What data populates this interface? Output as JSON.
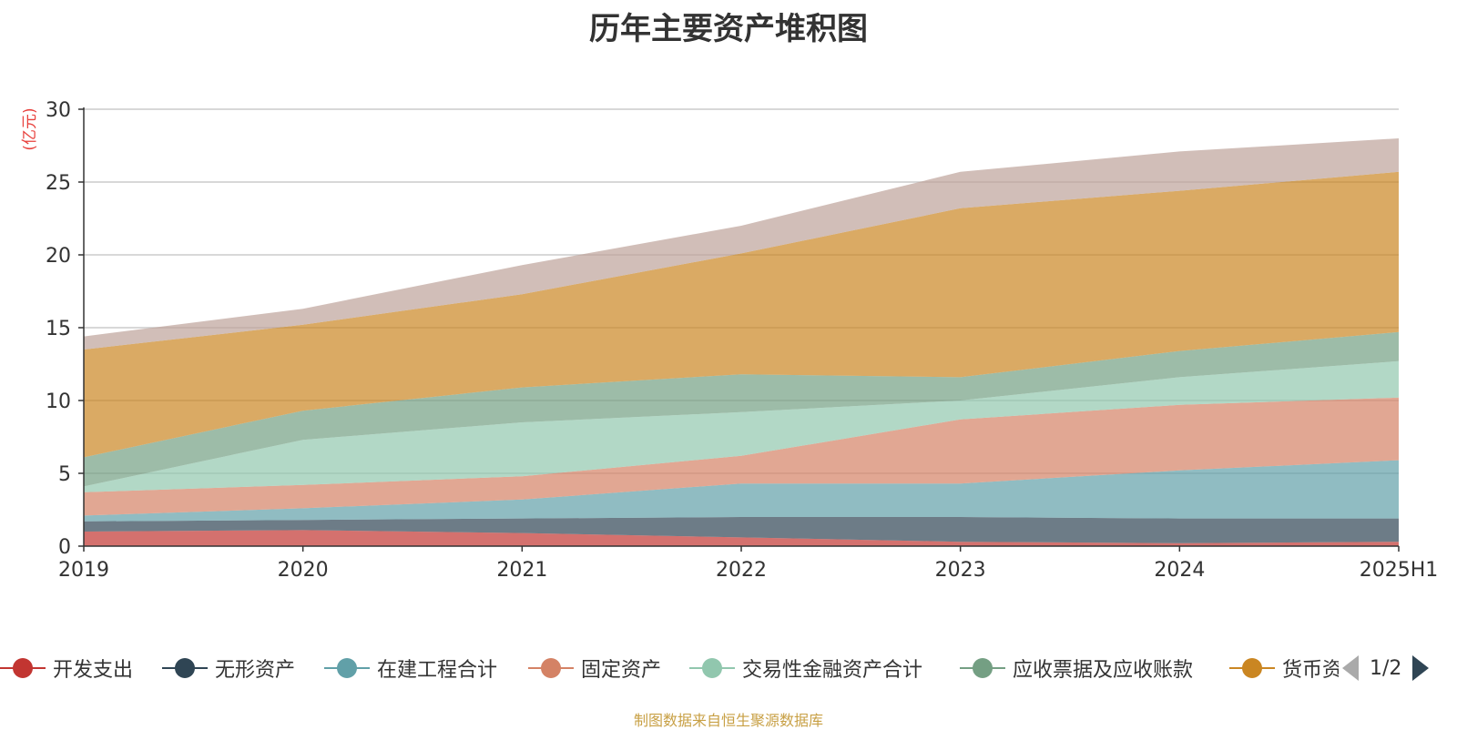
{
  "chart_data": {
    "type": "area",
    "stacked": true,
    "title": "历年主要资产堆积图",
    "ylabel": "(亿元)",
    "xlabel": "",
    "categories": [
      "2019",
      "2020",
      "2021",
      "2022",
      "2023",
      "2024",
      "2025H1"
    ],
    "ylim": [
      0,
      30
    ],
    "yticks": [
      0,
      5,
      10,
      15,
      20,
      25,
      30
    ],
    "grid": true,
    "legend_position": "bottom",
    "series": [
      {
        "name": "开发支出",
        "color": "#c23531",
        "values": [
          1.0,
          1.1,
          0.9,
          0.6,
          0.3,
          0.2,
          0.3
        ]
      },
      {
        "name": "无形资产",
        "color": "#2f4554",
        "values": [
          0.7,
          0.7,
          1.0,
          1.4,
          1.7,
          1.7,
          1.6
        ]
      },
      {
        "name": "在建工程合计",
        "color": "#61a0a8",
        "values": [
          0.4,
          0.8,
          1.3,
          2.3,
          2.3,
          3.3,
          4.0
        ]
      },
      {
        "name": "固定资产",
        "color": "#d48265",
        "values": [
          1.6,
          1.6,
          1.6,
          1.9,
          4.4,
          4.5,
          4.3
        ]
      },
      {
        "name": "交易性金融资产合计",
        "color": "#91c7ae",
        "values": [
          0.4,
          3.1,
          3.7,
          3.0,
          1.3,
          1.9,
          2.5
        ]
      },
      {
        "name": "应收票据及应收账款",
        "color": "#749f83",
        "values": [
          2.0,
          2.0,
          2.4,
          2.6,
          1.6,
          1.8,
          2.0
        ]
      },
      {
        "name": "货币资金",
        "color": "#ca8622",
        "values": [
          7.4,
          5.9,
          6.4,
          8.3,
          11.6,
          11.0,
          11.0
        ]
      },
      {
        "name": "",
        "color": "#bda29a",
        "values": [
          0.9,
          1.1,
          2.0,
          1.9,
          2.5,
          2.7,
          2.3
        ]
      }
    ]
  },
  "legend": {
    "items": [
      "开发支出",
      "无形资产",
      "在建工程合计",
      "固定资产",
      "交易性金融资产合计",
      "应收票据及应收账款",
      "货币资"
    ],
    "colors": [
      "#c23531",
      "#2f4554",
      "#61a0a8",
      "#d48265",
      "#91c7ae",
      "#749f83",
      "#ca8622"
    ],
    "pager_text": "1/2"
  },
  "source_note": "制图数据来自恒生聚源数据库"
}
